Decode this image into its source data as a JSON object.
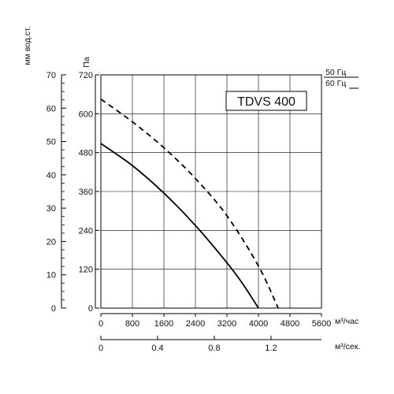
{
  "chart_data": {
    "type": "line",
    "model_label": "TDVS 400",
    "pressure_unit": "Па",
    "water_unit": "мм вод.ст.",
    "flow_unit_hour": "м³/час",
    "flow_unit_sec": "м³/сек.",
    "pressure_ticks": [
      "0",
      "120",
      "240",
      "360",
      "480",
      "600",
      "720"
    ],
    "water_ticks": [
      "0",
      "10",
      "20",
      "30",
      "40",
      "50",
      "60",
      "70"
    ],
    "flow_hour_ticks": [
      "0",
      "800",
      "1600",
      "2400",
      "3200",
      "4000",
      "4800",
      "5600"
    ],
    "flow_sec_ticks": [
      "0",
      "0.4",
      "0.8",
      "1.2"
    ],
    "xlim": [
      0,
      5600
    ],
    "ylim": [
      0,
      720
    ],
    "water_lim": [
      0,
      70
    ],
    "sec_lim": [
      0,
      1.556
    ],
    "grid": true,
    "legend_position": "top-right",
    "series": [
      {
        "name": "50 Гц",
        "style": "solid",
        "color": "#000000",
        "x": [
          0,
          800,
          1600,
          2400,
          3200,
          3600,
          4000
        ],
        "y": [
          508,
          440,
          355,
          255,
          140,
          75,
          0
        ]
      },
      {
        "name": "60 Гц",
        "style": "dashed",
        "color": "#000000",
        "x": [
          0,
          800,
          1600,
          2400,
          3200,
          4000,
          4500
        ],
        "y": [
          645,
          575,
          495,
          400,
          285,
          130,
          0
        ]
      }
    ]
  }
}
